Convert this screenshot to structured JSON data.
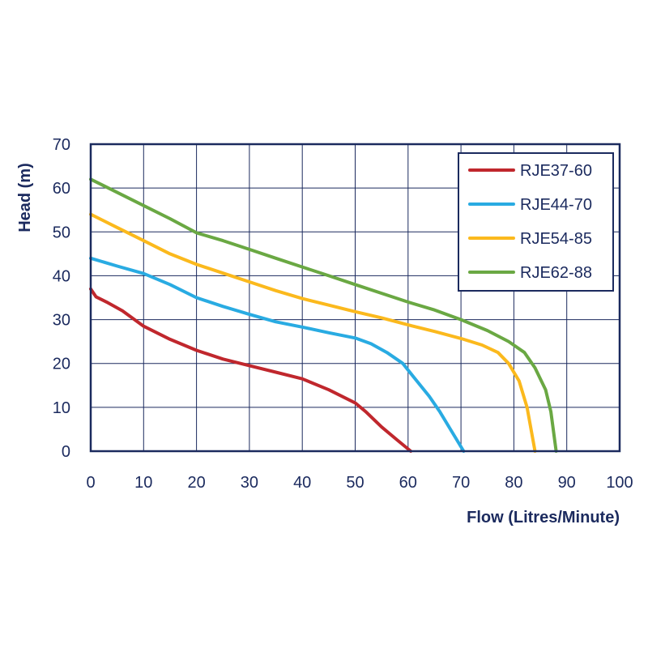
{
  "chart_data": {
    "type": "line",
    "title": "",
    "xlabel": "Flow (Litres/Minute)",
    "ylabel": "Head (m)",
    "xlim": [
      0,
      100
    ],
    "ylim": [
      0,
      70
    ],
    "xticks": [
      "0",
      "10",
      "20",
      "30",
      "40",
      "50",
      "60",
      "70",
      "80",
      "90",
      "100"
    ],
    "yticks": [
      "0",
      "10",
      "20",
      "30",
      "40",
      "50",
      "60",
      "70"
    ],
    "grid": true,
    "legend_position": "top-right",
    "series": [
      {
        "name": "RJE37-60",
        "color": "#c0272d",
        "points": [
          [
            0,
            37
          ],
          [
            1,
            35.2
          ],
          [
            3,
            34
          ],
          [
            6,
            32
          ],
          [
            10,
            28.5
          ],
          [
            15,
            25.5
          ],
          [
            20,
            23
          ],
          [
            25,
            21
          ],
          [
            30,
            19.5
          ],
          [
            35,
            18
          ],
          [
            40,
            16.5
          ],
          [
            45,
            14
          ],
          [
            50,
            11
          ],
          [
            52,
            9
          ],
          [
            55,
            5.5
          ],
          [
            58,
            2.5
          ],
          [
            60.5,
            0
          ]
        ]
      },
      {
        "name": "RJE44-70",
        "color": "#29abe2",
        "points": [
          [
            0,
            44
          ],
          [
            5,
            42.2
          ],
          [
            10,
            40.5
          ],
          [
            15,
            38
          ],
          [
            20,
            35
          ],
          [
            25,
            33
          ],
          [
            30,
            31.2
          ],
          [
            35,
            29.5
          ],
          [
            40,
            28.3
          ],
          [
            45,
            27
          ],
          [
            50,
            25.8
          ],
          [
            53,
            24.5
          ],
          [
            56,
            22.5
          ],
          [
            59,
            20
          ],
          [
            61,
            17
          ],
          [
            64,
            12.5
          ],
          [
            66,
            9
          ],
          [
            68,
            5
          ],
          [
            70.5,
            0
          ]
        ]
      },
      {
        "name": "RJE54-85",
        "color": "#fbb91d",
        "points": [
          [
            0,
            54
          ],
          [
            5,
            51
          ],
          [
            10,
            48
          ],
          [
            15,
            45
          ],
          [
            20,
            42.6
          ],
          [
            25,
            40.6
          ],
          [
            30,
            38.6
          ],
          [
            35,
            36.6
          ],
          [
            40,
            34.8
          ],
          [
            45,
            33.3
          ],
          [
            50,
            31.8
          ],
          [
            55,
            30.4
          ],
          [
            60,
            28.8
          ],
          [
            65,
            27.3
          ],
          [
            70,
            25.7
          ],
          [
            74,
            24.2
          ],
          [
            77,
            22.5
          ],
          [
            79,
            20
          ],
          [
            81,
            16
          ],
          [
            82.5,
            10
          ],
          [
            84,
            0
          ]
        ]
      },
      {
        "name": "RJE62-88",
        "color": "#6aa843",
        "points": [
          [
            0,
            62
          ],
          [
            5,
            59
          ],
          [
            10,
            56
          ],
          [
            15,
            53
          ],
          [
            20,
            49.8
          ],
          [
            25,
            48
          ],
          [
            30,
            46
          ],
          [
            35,
            44
          ],
          [
            40,
            42
          ],
          [
            45,
            40
          ],
          [
            50,
            38
          ],
          [
            55,
            36
          ],
          [
            60,
            34
          ],
          [
            65,
            32.2
          ],
          [
            70,
            30
          ],
          [
            75,
            27.5
          ],
          [
            79,
            25
          ],
          [
            82,
            22.5
          ],
          [
            84,
            19
          ],
          [
            86,
            14
          ],
          [
            87,
            9
          ],
          [
            88,
            0
          ]
        ]
      }
    ]
  }
}
